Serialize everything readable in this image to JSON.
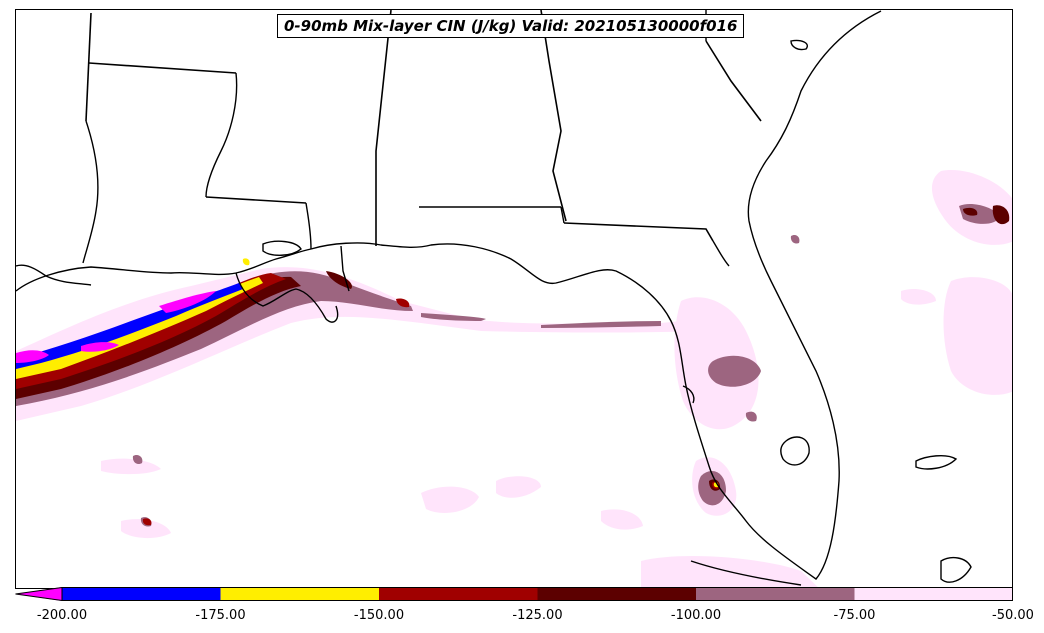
{
  "title": "0-90mb Mix-layer CIN (J/kg) Valid: 202105130000f016",
  "colorbar": {
    "ticks": [
      "-200.00",
      "-175.00",
      "-150.00",
      "-125.00",
      "-100.00",
      "-75.00",
      "-50.00"
    ],
    "extend": "min",
    "under_color": "#ff00ff",
    "bins": [
      {
        "from": -200,
        "to": -175,
        "color": "#0000ff"
      },
      {
        "from": -175,
        "to": -150,
        "color": "#ffee00"
      },
      {
        "from": -150,
        "to": -125,
        "color": "#a00000"
      },
      {
        "from": -125,
        "to": -100,
        "color": "#5c0000"
      },
      {
        "from": -100,
        "to": -75,
        "color": "#9d6580"
      },
      {
        "from": -75,
        "to": -50,
        "color": "#ffe4fb"
      }
    ]
  },
  "colors": {
    "coastline": "#000000",
    "state_borders": "#000000",
    "background": "#ffffff"
  }
}
